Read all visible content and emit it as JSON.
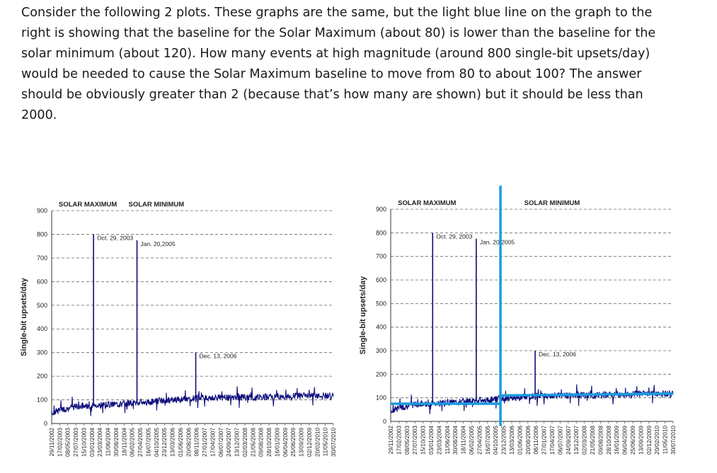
{
  "question": {
    "lines": [
      "Consider the following 2 plots. These graphs are the same, but the light blue line on the graph to the",
      "right is showing that the baseline for the Solar Maximum (about 80) is lower than the baseline for the",
      "solar minimum (about 120). How many events at high magnitude (around 800 single-bit upsets/day)",
      "would be needed to cause the Solar Maximum baseline to move from 80 to about 100? The answer",
      "should be obviously greater than 2 (because that’s how many are shown) but it should be less than",
      "2000."
    ]
  },
  "chart_data": [
    {
      "id": "left-chart",
      "type": "line",
      "title": "",
      "ylabel": "Single-bit upsets/day",
      "xlabel": "",
      "ylim": [
        0,
        900
      ],
      "yticks": [
        0,
        100,
        200,
        300,
        400,
        500,
        600,
        700,
        800,
        900
      ],
      "grid": "dashed horizontal",
      "x_tick_labels": [
        "29/11/2002",
        "17/02/2003",
        "08/05/2003",
        "27/07/2003",
        "15/10/2003",
        "03/01/2004",
        "23/03/2004",
        "11/06/2004",
        "30/08/2004",
        "18/11/2004",
        "06/02/2005",
        "27/04/2005",
        "16/07/2005",
        "04/10/2005",
        "23/12/2005",
        "13/03/2006",
        "01/06/2006",
        "20/08/2006",
        "08/11/2006",
        "27/01/2007",
        "17/04/2007",
        "06/07/2007",
        "24/09/2007",
        "13/12/2007",
        "02/03/2008",
        "21/05/2008",
        "09/08/2008",
        "28/10/2008",
        "16/01/2009",
        "06/04/2009",
        "25/06/2009",
        "13/09/2009",
        "02/12/2009",
        "20/02/2010",
        "11/05/2010",
        "30/07/2010"
      ],
      "regions": [
        {
          "label": "SOLAR MAXIMUM",
          "x_center": 4.5
        },
        {
          "label": "SOLAR MINIMUM",
          "x_center": 13.0
        }
      ],
      "series": [
        {
          "color": "#0d0d7a",
          "baseline": [
            [
              0,
              42
            ],
            [
              1,
              58
            ],
            [
              3,
              72
            ],
            [
              6,
              78
            ],
            [
              9,
              85
            ],
            [
              12,
              92
            ],
            [
              15,
              100
            ],
            [
              18,
              108
            ],
            [
              22,
              110
            ],
            [
              26,
              112
            ],
            [
              30,
              115
            ],
            [
              35,
              118
            ]
          ],
          "spikes": [
            {
              "x": 5.2,
              "y": 800,
              "label": "Oct. 29, 2003"
            },
            {
              "x": 10.6,
              "y": 775,
              "label": "Jan. 20,2005"
            },
            {
              "x": 17.9,
              "y": 300,
              "label": "Dec. 13, 2006"
            }
          ]
        }
      ],
      "overlay_lines": []
    },
    {
      "id": "right-chart",
      "type": "line",
      "title": "",
      "ylabel": "Single-bit upsets/day",
      "xlabel": "",
      "ylim": [
        0,
        900
      ],
      "yticks": [
        0,
        100,
        200,
        300,
        400,
        500,
        600,
        700,
        800,
        900
      ],
      "grid": "dashed horizontal",
      "x_tick_labels": [
        "29/11/2002",
        "17/02/2003",
        "08/05/2003",
        "27/07/2003",
        "15/10/2003",
        "03/01/2004",
        "23/03/2004",
        "11/06/2004",
        "30/08/2004",
        "18/11/2004",
        "06/02/2005",
        "27/04/2005",
        "16/07/2005",
        "04/10/2005",
        "23/12/2005",
        "13/03/2006",
        "01/06/2006",
        "20/08/2006",
        "08/11/2006",
        "27/01/2007",
        "17/04/2007",
        "06/07/2007",
        "24/09/2007",
        "13/12/2007",
        "02/03/2008",
        "21/05/2008",
        "09/08/2008",
        "28/10/2008",
        "16/01/2009",
        "06/04/2009",
        "25/06/2009",
        "13/09/2009",
        "02/12/2009",
        "20/02/2010",
        "11/05/2010",
        "30/07/2010"
      ],
      "regions": [
        {
          "label": "SOLAR MAXIMUM",
          "x_center": 4.5
        },
        {
          "label": "SOLAR MINIMUM",
          "x_center": 20.0
        }
      ],
      "series": [
        {
          "color": "#0d0d7a",
          "baseline": [
            [
              0,
              42
            ],
            [
              1,
              58
            ],
            [
              3,
              72
            ],
            [
              6,
              78
            ],
            [
              9,
              85
            ],
            [
              12,
              92
            ],
            [
              15,
              100
            ],
            [
              18,
              108
            ],
            [
              22,
              110
            ],
            [
              26,
              112
            ],
            [
              30,
              115
            ],
            [
              35,
              118
            ]
          ],
          "spikes": [
            {
              "x": 5.2,
              "y": 800,
              "label": "Oct. 29, 2003"
            },
            {
              "x": 10.6,
              "y": 775,
              "label": "Jan. 20,2005"
            },
            {
              "x": 17.9,
              "y": 300,
              "label": "Dec. 13, 2006"
            }
          ]
        }
      ],
      "overlay_lines": [
        {
          "color": "#1a9be0",
          "points": [
            [
              0,
              75
            ],
            [
              13.6,
              75
            ]
          ]
        },
        {
          "color": "#1a9be0",
          "points": [
            [
              13.6,
              110
            ],
            [
              35,
              118
            ]
          ]
        },
        {
          "color": "#1a9be0",
          "vertical_x": 13.6,
          "y_from": -20,
          "y_to": 1000
        }
      ]
    }
  ]
}
